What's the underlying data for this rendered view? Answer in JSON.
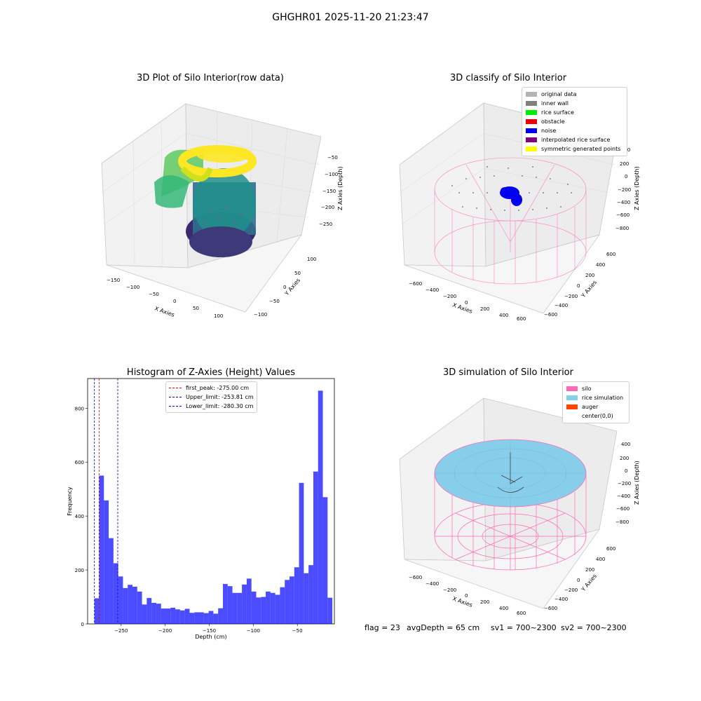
{
  "suptitle": "GHGHR01 2025-11-20 21:23:47",
  "panel1": {
    "title": "3D Plot of Silo Interior(row data)",
    "xlabel": "X Axies",
    "ylabel": "Y Axies",
    "zlabel": "Z Axies (Depth)",
    "xticks": [
      "−150",
      "−100",
      "−50",
      "0",
      "50",
      "100"
    ],
    "yticks": [
      "100",
      "50",
      "0",
      "−50",
      "−100"
    ],
    "zticks": [
      "−50",
      "−100",
      "−150",
      "−200",
      "−250"
    ]
  },
  "panel2": {
    "title": "3D classify of Silo Interior",
    "xlabel": "X Axies",
    "ylabel": "Y Axies",
    "zlabel": "Z Axies (Depth)",
    "xticks": [
      "−600",
      "−400",
      "−200",
      "0",
      "200",
      "400",
      "600"
    ],
    "yticks": [
      "600",
      "400",
      "200",
      "0",
      "−200",
      "−400",
      "−600"
    ],
    "zticks": [
      "400",
      "200",
      "0",
      "−200",
      "−400",
      "−600",
      "−800"
    ],
    "legend": [
      {
        "label": "original data",
        "color": "#b4b4b4"
      },
      {
        "label": "inner wall",
        "color": "#808080"
      },
      {
        "label": "rice surface",
        "color": "#00ee00"
      },
      {
        "label": "obstacle",
        "color": "#ee0000"
      },
      {
        "label": "noise",
        "color": "#0000ee"
      },
      {
        "label": "interpolated rice surface",
        "color": "#800080"
      },
      {
        "label": "symmetric generated points",
        "color": "#ffff00"
      }
    ]
  },
  "panel4": {
    "title": "3D simulation of Silo Interior",
    "xlabel": "X Axies",
    "ylabel": "Y Axies",
    "zlabel": "Z Axies (Depth)",
    "xticks": [
      "−600",
      "−400",
      "−200",
      "0",
      "200",
      "400",
      "600"
    ],
    "yticks": [
      "600",
      "400",
      "200",
      "0",
      "−200",
      "−400",
      "−600"
    ],
    "zticks": [
      "400",
      "200",
      "0",
      "−200",
      "−400",
      "−600",
      "−800"
    ],
    "legend": [
      {
        "label": "silo",
        "color": "#ff69b4"
      },
      {
        "label": "rice simulation",
        "color": "#87ceeb"
      },
      {
        "label": "auger",
        "color": "#ff4500"
      },
      {
        "label": "center(0,0)",
        "color": "#ffffff"
      }
    ]
  },
  "chart_data": [
    {
      "type": "bar",
      "title": "Histogram of Z-Axies (Height) Values",
      "xlabel": "Depth (cm)",
      "ylabel": "Frequency",
      "xlim": [
        -288,
        -8
      ],
      "ylim": [
        0,
        910
      ],
      "xticks": [
        -250,
        -200,
        -150,
        -100,
        -50
      ],
      "xtick_labels": [
        "−250",
        "−200",
        "−150",
        "−100",
        "−50"
      ],
      "yticks": [
        0,
        200,
        400,
        600,
        800
      ],
      "yticks_labels": [
        "0",
        "200",
        "400",
        "600",
        "800"
      ],
      "bin_start": -280.3,
      "bin_width": 5.4,
      "values": [
        95,
        550,
        458,
        318,
        225,
        176,
        133,
        145,
        138,
        120,
        72,
        96,
        78,
        75,
        57,
        57,
        60,
        54,
        50,
        56,
        41,
        43,
        43,
        40,
        48,
        38,
        58,
        148,
        140,
        115,
        115,
        146,
        168,
        120,
        98,
        100,
        120,
        115,
        108,
        136,
        163,
        176,
        210,
        523,
        188,
        218,
        565,
        865,
        470,
        97
      ],
      "bar_color": "#0000ff",
      "vlines": [
        {
          "label": "first_peak: -275.00 cm",
          "x": -275.0,
          "color": "#e00000"
        },
        {
          "label": "Upper_limit: -253.81 cm",
          "x": -253.81,
          "color": "#0000cc"
        },
        {
          "label": "Lower_limit: -280.30 cm",
          "x": -280.3,
          "color": "#0000cc"
        }
      ],
      "legend_position": "top-center"
    }
  ],
  "footer": {
    "flag": "flag = 23",
    "avg": "avgDepth = 65 cm",
    "sv1": "sv1 = 700~2300",
    "sv2": "sv2 = 700~2300"
  }
}
